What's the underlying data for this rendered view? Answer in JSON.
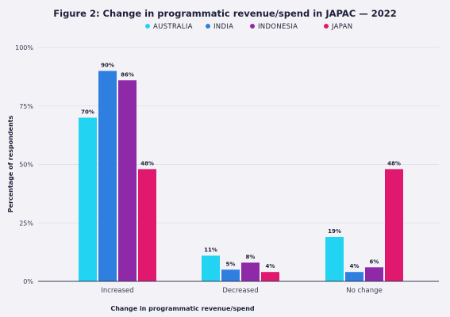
{
  "chart_data": {
    "type": "bar",
    "title": "Figure 2: Change in programmatic revenue/spend in JAPAC — 2022",
    "xlabel": "Change in programmatic revenue/spend",
    "ylabel": "Percentage of respondents",
    "categories": [
      "Increased",
      "Decreased",
      "No change"
    ],
    "ylim": [
      0,
      100
    ],
    "yticks": [
      0,
      25,
      50,
      75,
      100
    ],
    "ytick_labels": [
      "0%",
      "25%",
      "50%",
      "75%",
      "100%"
    ],
    "grid": true,
    "legend_position": "top",
    "series": [
      {
        "name": "AUSTRALIA",
        "color": "#22d3f2",
        "values": [
          70,
          11,
          19
        ],
        "labels": [
          "70%",
          "11%",
          "19%"
        ]
      },
      {
        "name": "INDIA",
        "color": "#2f7fe0",
        "values": [
          90,
          5,
          4
        ],
        "labels": [
          "90%",
          "5%",
          "4%"
        ]
      },
      {
        "name": "INDONESIA",
        "color": "#8e2aa8",
        "values": [
          86,
          8,
          6
        ],
        "labels": [
          "86%",
          "8%",
          "6%"
        ]
      },
      {
        "name": "JAPAN",
        "color": "#e0186e",
        "values": [
          48,
          4,
          48
        ],
        "labels": [
          "48%",
          "4%",
          "48%"
        ]
      }
    ]
  }
}
